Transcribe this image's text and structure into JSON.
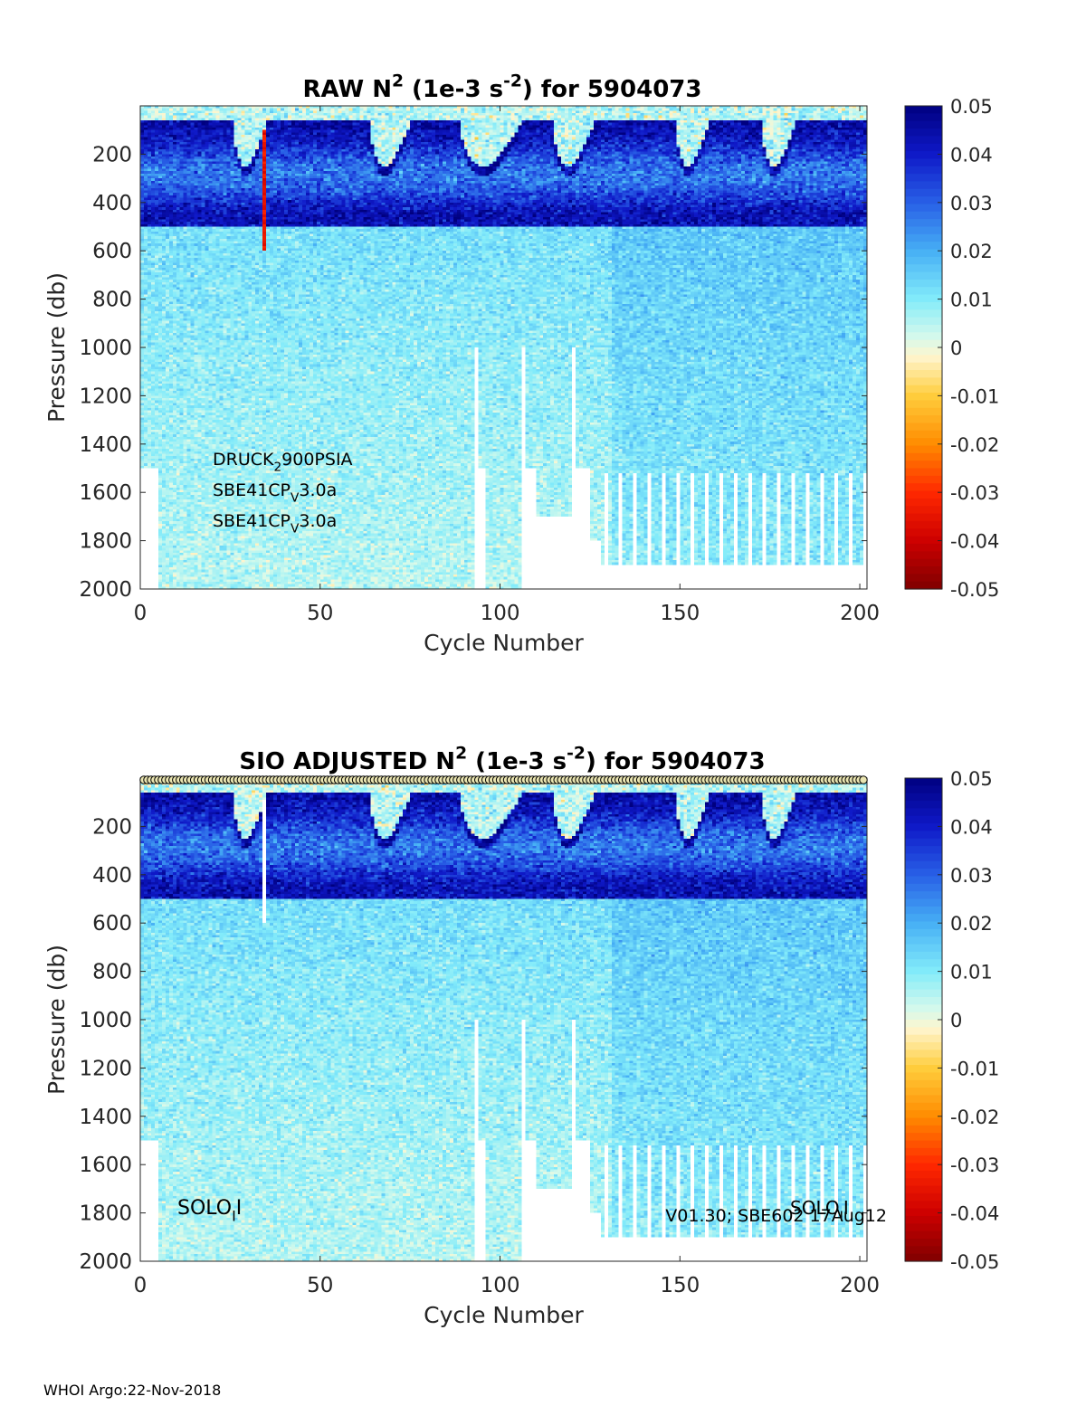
{
  "footer": "WHOI Argo:22-Nov-2018",
  "chart_data": [
    {
      "type": "heatmap",
      "title_parts": [
        "RAW N",
        "2",
        " (1e-3 s",
        "-2",
        ") for 5904073"
      ],
      "xlabel": "Cycle Number",
      "ylabel": "Pressure (db)",
      "xlim": [
        0,
        202
      ],
      "ylim": [
        0,
        2000
      ],
      "y_reversed": true,
      "xticks": [
        0,
        50,
        100,
        150,
        200
      ],
      "yticks": [
        200,
        400,
        600,
        800,
        1000,
        1200,
        1400,
        1600,
        1800,
        2000
      ],
      "colorbar": {
        "min": -0.05,
        "max": 0.05,
        "ticks": [
          "0.05",
          "0.04",
          "0.03",
          "0.02",
          "0.01",
          "0",
          "-0.01",
          "-0.02",
          "-0.03",
          "-0.04",
          "-0.05"
        ],
        "colormap": "jet-like diverging (dark red to white to dark blue)"
      },
      "sensor_labels": [
        {
          "parts": [
            "DRUCK",
            "2",
            "900PSIA"
          ]
        },
        {
          "parts": [
            "SBE41CP",
            "V",
            "3.0a"
          ]
        },
        {
          "parts": [
            "SBE41CP",
            "V",
            "3.0a"
          ]
        }
      ],
      "field_description": {
        "upper_layer_0_to_500_db": 0.035,
        "mid_layer_500_to_1000_db": 0.012,
        "deep_layer_1000_to_2000_db": 0.009,
        "notes": "Strong positive N2 (dark blue) in upper 500 db; surface mixed layer near 0 shown light near cycles 25-35, 65-75, 90-105, 115-125, 150-160; anomalous negative values at cycle 34 from 100-600 db."
      },
      "profile_max_pressure": [
        {
          "cycles": [
            0,
            4
          ],
          "pmax": 1500
        },
        {
          "cycles": [
            5,
            92
          ],
          "pmax": 2000
        },
        {
          "cycles": [
            93,
            95
          ],
          "pmax": 1500
        },
        {
          "cycles": [
            96,
            105
          ],
          "pmax": 2000
        },
        {
          "cycles": [
            106,
            109
          ],
          "pmax": 1500
        },
        {
          "cycles": [
            110,
            119
          ],
          "pmax": 1700
        },
        {
          "cycles": [
            120,
            124
          ],
          "pmax": 1500
        },
        {
          "cycles": [
            125,
            127
          ],
          "pmax": 1800
        },
        {
          "cycles": [
            128,
            201
          ],
          "pmax": 1900
        }
      ],
      "missing_cycles": [
        93,
        106,
        120
      ]
    },
    {
      "type": "heatmap",
      "title_parts": [
        "SIO  ADJUSTED N",
        "2",
        " (1e-3 s",
        "-2",
        ") for 5904073"
      ],
      "xlabel": "Cycle Number",
      "ylabel": "Pressure (db)",
      "xlim": [
        0,
        202
      ],
      "ylim": [
        0,
        2000
      ],
      "y_reversed": true,
      "xticks": [
        0,
        50,
        100,
        150,
        200
      ],
      "yticks": [
        200,
        400,
        600,
        800,
        1000,
        1200,
        1400,
        1600,
        1800,
        2000
      ],
      "colorbar": {
        "min": -0.05,
        "max": 0.05,
        "ticks": [
          "0.05",
          "0.04",
          "0.03",
          "0.02",
          "0.01",
          "0",
          "-0.01",
          "-0.02",
          "-0.03",
          "-0.04",
          "-0.05"
        ],
        "colormap": "jet-like diverging (dark red to white to dark blue)"
      },
      "annotations": [
        {
          "parts": [
            "SOLO",
            "I",
            "I"
          ],
          "position": "bottom-left"
        },
        {
          "text": "V01.30; SBE602 17Aug12",
          "position": "bottom-right"
        },
        {
          "parts": [
            "SOLO",
            "I",
            "I"
          ],
          "position": "bottom-right"
        }
      ],
      "top_markers": "circle markers along pressure 0 for every cycle 1-201",
      "field_description": {
        "upper_layer_0_to_500_db": 0.035,
        "mid_layer_500_to_1000_db": 0.012,
        "deep_layer_1000_to_2000_db": 0.009,
        "notes": "Same as RAW but cycle 34 anomaly removed (blank column 100-600 db)."
      },
      "profile_max_pressure": [
        {
          "cycles": [
            0,
            4
          ],
          "pmax": 1500
        },
        {
          "cycles": [
            5,
            92
          ],
          "pmax": 2000
        },
        {
          "cycles": [
            93,
            95
          ],
          "pmax": 1500
        },
        {
          "cycles": [
            96,
            105
          ],
          "pmax": 2000
        },
        {
          "cycles": [
            106,
            109
          ],
          "pmax": 1500
        },
        {
          "cycles": [
            110,
            119
          ],
          "pmax": 1700
        },
        {
          "cycles": [
            120,
            124
          ],
          "pmax": 1500
        },
        {
          "cycles": [
            125,
            127
          ],
          "pmax": 1800
        },
        {
          "cycles": [
            128,
            201
          ],
          "pmax": 1900
        }
      ],
      "missing_cycles": [
        93,
        106,
        120,
        34
      ]
    }
  ]
}
